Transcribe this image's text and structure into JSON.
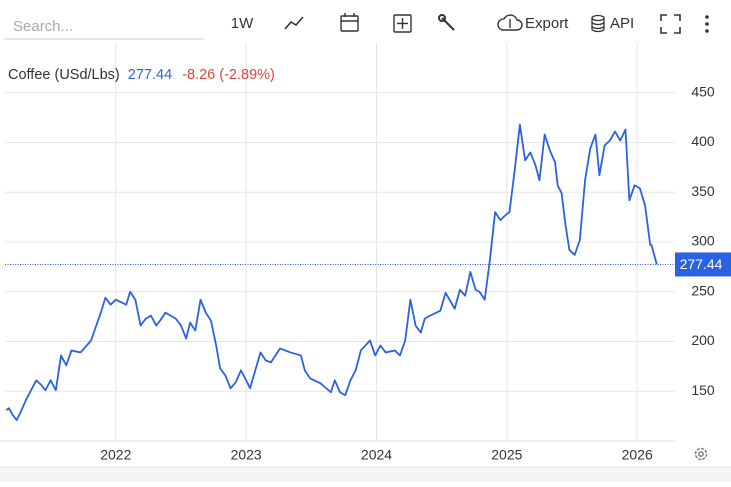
{
  "toolbar": {
    "search_placeholder": "Search...",
    "interval": "1W",
    "export": "Export",
    "api": "API"
  },
  "chart_data": {
    "type": "line",
    "title": "Coffee (USd/Lbs)",
    "last": 277.44,
    "change_label": "-8.26 (-2.89%)",
    "color": "#2b62e3",
    "x": [
      2021.16,
      2021.18,
      2021.21,
      2021.24,
      2021.27,
      2021.31,
      2021.35,
      2021.39,
      2021.43,
      2021.46,
      2021.5,
      2021.54,
      2021.58,
      2021.62,
      2021.66,
      2021.73,
      2021.81,
      2021.89,
      2021.92,
      2021.96,
      2022.0,
      2022.08,
      2022.11,
      2022.15,
      2022.19,
      2022.23,
      2022.27,
      2022.31,
      2022.34,
      2022.38,
      2022.46,
      2022.5,
      2022.54,
      2022.57,
      2022.61,
      2022.65,
      2022.69,
      2022.73,
      2022.77,
      2022.8,
      2022.84,
      2022.88,
      2022.92,
      2022.96,
      2023.0,
      2023.03,
      2023.07,
      2023.11,
      2023.15,
      2023.19,
      2023.26,
      2023.34,
      2023.42,
      2023.45,
      2023.49,
      2023.57,
      2023.65,
      2023.68,
      2023.72,
      2023.76,
      2023.8,
      2023.84,
      2023.88,
      2023.95,
      2023.99,
      2024.03,
      2024.07,
      2024.14,
      2024.18,
      2024.22,
      2024.26,
      2024.3,
      2024.34,
      2024.37,
      2024.41,
      2024.49,
      2024.53,
      2024.6,
      2024.64,
      2024.68,
      2024.72,
      2024.76,
      2024.79,
      2024.83,
      2024.87,
      2024.91,
      2024.95,
      2024.99,
      2025.02,
      2025.06,
      2025.1,
      2025.14,
      2025.18,
      2025.22,
      2025.25,
      2025.29,
      2025.33,
      2025.37,
      2025.39,
      2025.42,
      2025.45,
      2025.48,
      2025.52,
      2025.56,
      2025.6,
      2025.64,
      2025.68,
      2025.71,
      2025.75,
      2025.79,
      2025.83,
      2025.87,
      2025.91,
      2025.94,
      2025.98,
      2026.02,
      2026.06,
      2026.1,
      2026.11,
      2026.15
    ],
    "series": [
      {
        "name": "Coffee (USd/Lbs)",
        "color": "#2b62e3",
        "values": [
          131,
          133,
          126,
          121,
          129,
          141,
          151,
          161,
          156,
          151,
          161,
          151,
          186,
          176,
          191,
          189,
          201,
          231,
          244,
          237,
          242,
          237,
          250,
          242,
          216,
          223,
          226,
          216,
          221,
          229,
          223,
          216,
          203,
          219,
          211,
          242,
          229,
          221,
          196,
          173,
          166,
          153,
          159,
          171,
          161,
          153,
          171,
          189,
          181,
          179,
          193,
          189,
          186,
          171,
          163,
          158,
          149,
          161,
          149,
          146,
          161,
          171,
          191,
          201,
          186,
          196,
          189,
          191,
          186,
          201,
          242,
          216,
          209,
          223,
          226,
          231,
          249,
          233,
          252,
          246,
          270,
          252,
          250,
          242,
          282,
          330,
          322,
          327,
          330,
          372,
          418,
          382,
          390,
          377,
          362,
          408,
          392,
          380,
          357,
          349,
          317,
          292,
          287,
          302,
          362,
          394,
          408,
          367,
          397,
          402,
          411,
          402,
          413,
          342,
          357,
          354,
          337,
          297,
          297,
          277.44
        ]
      }
    ],
    "xlim": [
      2021.15,
      2026.29
    ],
    "xticks": [
      2022,
      2023,
      2024,
      2025,
      2026
    ],
    "ylim": [
      100,
      500
    ],
    "yticks": [
      150,
      200,
      250,
      300,
      350,
      400,
      450
    ],
    "grid": true
  }
}
